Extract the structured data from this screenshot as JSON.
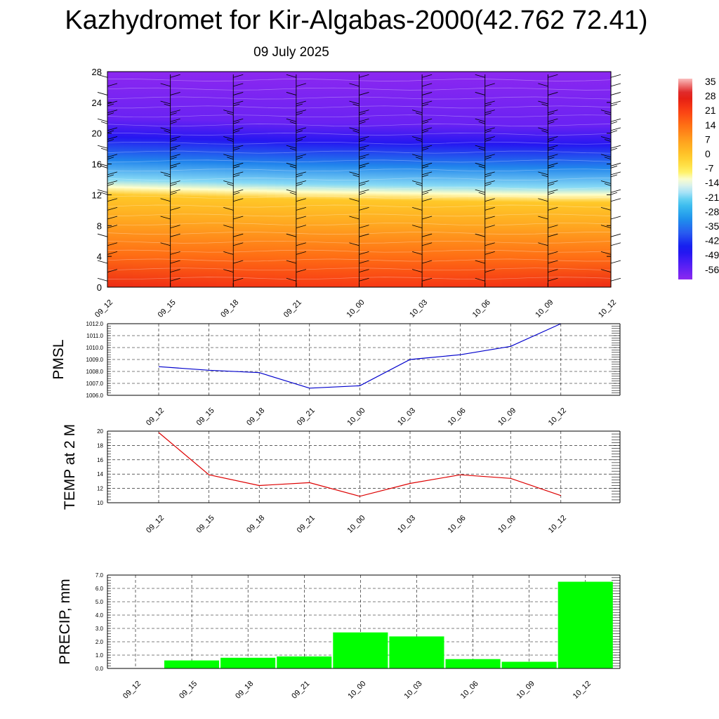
{
  "title": "Kazhydromet for Kir-Algabas-2000(42.762 72.41)",
  "subtitle": "09 July 2025",
  "colorbar": {
    "labels": [
      "35",
      "28",
      "21",
      "14",
      "7",
      "0",
      "-7",
      "-14",
      "-21",
      "-28",
      "-35",
      "-42",
      "-49",
      "-56"
    ]
  },
  "chart_data": [
    {
      "type": "heatmap",
      "name": "temperature-cross-section",
      "x": [
        "09_12",
        "09_15",
        "09_18",
        "09_21",
        "10_00",
        "10_03",
        "10_06",
        "10_09",
        "10_12"
      ],
      "y_ticks": [
        0,
        4,
        8,
        12,
        16,
        20,
        24,
        28
      ],
      "ylim": [
        0,
        28
      ],
      "zero_level": [
        12,
        11.8,
        11.6,
        11.4,
        11.3,
        11.2,
        11.1,
        11.0,
        11.0
      ],
      "color_range": [
        -56,
        35
      ],
      "wind_barbs": true
    },
    {
      "type": "line",
      "ylabel": "PMSL",
      "x": [
        "09_12",
        "09_15",
        "09_18",
        "09_21",
        "10_00",
        "10_03",
        "10_06",
        "10_09",
        "10_12"
      ],
      "values": [
        1008.4,
        1008.1,
        1007.9,
        1006.6,
        1006.8,
        1009.0,
        1009.4,
        1010.1,
        1012.0
      ],
      "ylim": [
        1006.0,
        1012.0
      ],
      "y_ticks": [
        "1006.0",
        "1007.0",
        "1008.0",
        "1009.0",
        "1010.0",
        "1011.0",
        "1012.0"
      ],
      "color": "#0000cc",
      "grid": true
    },
    {
      "type": "line",
      "ylabel": "TEMP at 2 M",
      "x": [
        "09_12",
        "09_15",
        "09_18",
        "09_21",
        "10_00",
        "10_03",
        "10_06",
        "10_09",
        "10_12"
      ],
      "values": [
        19.8,
        13.9,
        12.4,
        12.8,
        10.9,
        12.7,
        13.9,
        13.4,
        11.0
      ],
      "ylim": [
        10,
        20
      ],
      "y_ticks": [
        "10",
        "12",
        "14",
        "16",
        "18",
        "20"
      ],
      "color": "#dd0000",
      "grid": true
    },
    {
      "type": "bar",
      "ylabel": "PRECIP, mm",
      "categories": [
        "09_12",
        "09_15",
        "09_18",
        "09_21",
        "10_00",
        "10_03",
        "10_06",
        "10_09",
        "10_12"
      ],
      "values": [
        0.0,
        0.6,
        0.8,
        0.9,
        2.7,
        2.4,
        0.7,
        0.5,
        6.5
      ],
      "ylim": [
        0,
        7
      ],
      "y_ticks": [
        "0.0",
        "1.0",
        "2.0",
        "3.0",
        "4.0",
        "5.0",
        "6.0",
        "7.0"
      ],
      "color": "#00ff00",
      "grid": true
    }
  ]
}
